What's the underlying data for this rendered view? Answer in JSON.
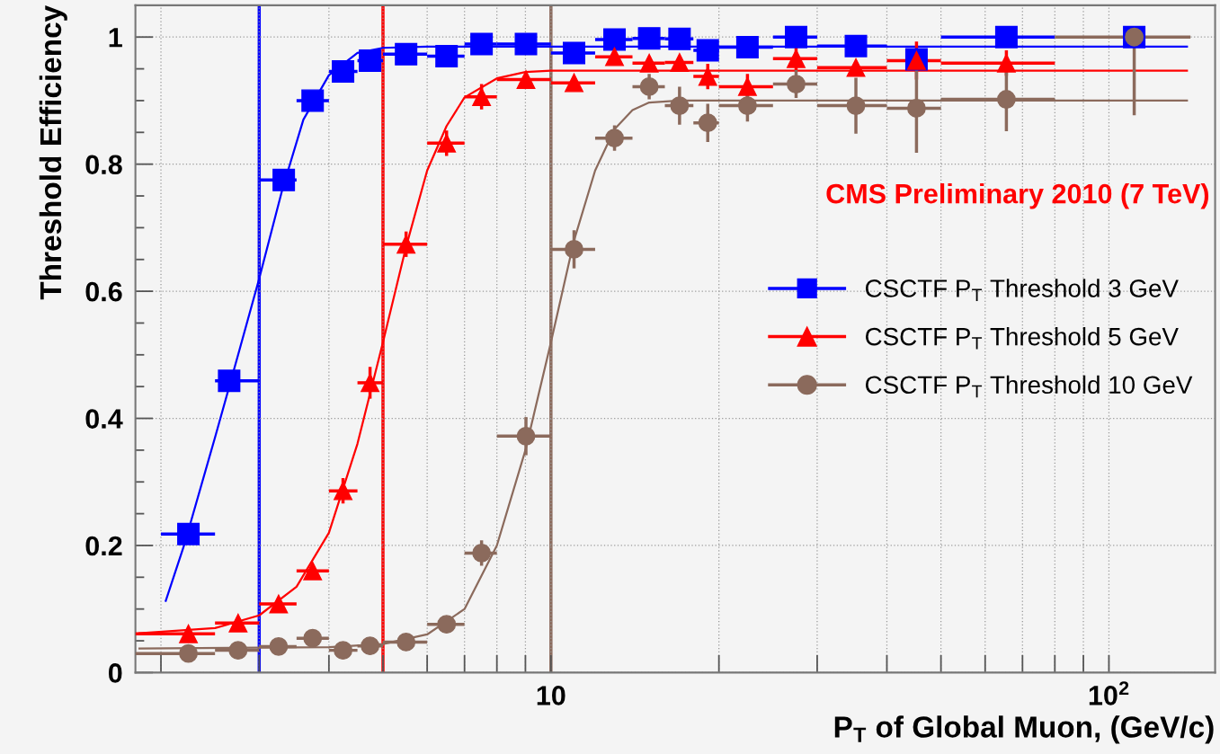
{
  "chart_data": {
    "type": "scatter",
    "xlabel": "P$_{T}$ of Global Muon, (GeV/c)",
    "ylabel": "Threshold Efficiency",
    "log": "x",
    "xlim": [
      1.8,
      155
    ],
    "ylim": [
      0,
      1.05
    ],
    "xticks": [
      {
        "value": 2,
        "label": null
      },
      {
        "value": 3,
        "label": null
      },
      {
        "value": 4,
        "label": null
      },
      {
        "value": 5,
        "label": null
      },
      {
        "value": 6,
        "label": null
      },
      {
        "value": 7,
        "label": null
      },
      {
        "value": 8,
        "label": null
      },
      {
        "value": 9,
        "label": null
      },
      {
        "value": 10,
        "label": "10"
      },
      {
        "value": 20,
        "label": null
      },
      {
        "value": 30,
        "label": null
      },
      {
        "value": 40,
        "label": null
      },
      {
        "value": 50,
        "label": null
      },
      {
        "value": 60,
        "label": null
      },
      {
        "value": 70,
        "label": null
      },
      {
        "value": 80,
        "label": null
      },
      {
        "value": 90,
        "label": null
      },
      {
        "value": 100,
        "label": "10$^{2}$"
      }
    ],
    "yticks": [
      0,
      0.2,
      0.4,
      0.6,
      0.8,
      1
    ],
    "grid": true,
    "legend": "right",
    "annotations": [
      "CMS Preliminary 2010 (7 TeV)"
    ],
    "ref_lines": [
      {
        "axis": "x",
        "value": 3,
        "color": "#0000ff"
      },
      {
        "axis": "x",
        "value": 5,
        "color": "#ff0000"
      },
      {
        "axis": "x",
        "value": 10,
        "color": "#8b6a5c"
      }
    ],
    "series": [
      {
        "type": "line",
        "color": "#0000ff",
        "marker": "none",
        "x": [
          2.04,
          2.2,
          2.5,
          2.75,
          3.0,
          3.3,
          3.6,
          4.0,
          4.5,
          5,
          6,
          138
        ],
        "values": [
          0.113,
          0.2,
          0.37,
          0.5,
          0.62,
          0.76,
          0.87,
          0.94,
          0.975,
          0.983,
          0.985,
          0.985
        ]
      },
      {
        "type": "line",
        "color": "#ff0000",
        "marker": "none",
        "x": [
          1.83,
          2.5,
          3.0,
          3.5,
          4.0,
          4.5,
          5.0,
          5.5,
          6,
          6.5,
          7,
          8,
          9,
          10,
          138
        ],
        "values": [
          0.062,
          0.07,
          0.09,
          0.135,
          0.22,
          0.36,
          0.52,
          0.67,
          0.79,
          0.86,
          0.905,
          0.935,
          0.945,
          0.947,
          0.947
        ]
      },
      {
        "type": "line",
        "color": "#8b6a5c",
        "marker": "none",
        "x": [
          1.83,
          4,
          5,
          6,
          7,
          8,
          9,
          10,
          11,
          12,
          13,
          14,
          15,
          17,
          138
        ],
        "values": [
          0.038,
          0.04,
          0.045,
          0.06,
          0.1,
          0.2,
          0.35,
          0.52,
          0.68,
          0.79,
          0.855,
          0.885,
          0.897,
          0.9,
          0.9
        ]
      },
      {
        "name": "CSCTF P$_{T}$ Threshold 3 GeV",
        "color": "#0000ff",
        "marker": "square",
        "x": [
          2.24,
          2.65,
          3.32,
          3.74,
          4.24,
          4.74,
          5.5,
          6.5,
          7.51,
          9.02,
          11.0,
          13.0,
          15.0,
          17.0,
          19.1,
          22.5,
          27.5,
          35.2,
          45.2,
          65.5,
          111
        ],
        "values": [
          0.218,
          0.459,
          0.775,
          0.9,
          0.946,
          0.963,
          0.973,
          0.97,
          0.989,
          0.989,
          0.975,
          0.996,
          0.998,
          0.997,
          0.979,
          0.984,
          1.0,
          0.986,
          0.965,
          1.0,
          1.0
        ],
        "xerrors": [
          [
            2,
            2.5
          ],
          [
            2.5,
            3
          ],
          [
            3,
            3.5
          ],
          [
            3.5,
            4
          ],
          [
            4,
            4.5
          ],
          [
            4.5,
            5
          ],
          [
            5,
            6
          ],
          [
            6,
            7
          ],
          [
            7,
            8
          ],
          [
            8,
            10
          ],
          [
            10,
            12
          ],
          [
            12,
            14
          ],
          [
            14,
            16
          ],
          [
            16,
            18
          ],
          [
            18,
            20
          ],
          [
            20,
            25
          ],
          [
            25,
            30
          ],
          [
            30,
            40
          ],
          null,
          [
            50,
            80
          ],
          null
        ]
      },
      {
        "name": "CSCTF P$_{T}$ Threshold 5 GeV",
        "color": "#ff0000",
        "marker": "triangle",
        "x": [
          2.24,
          2.75,
          3.25,
          3.74,
          4.24,
          4.74,
          5.5,
          6.5,
          7.51,
          9.02,
          11.0,
          13.0,
          15.0,
          17.0,
          19.1,
          22.5,
          27.5,
          35.2,
          45.2,
          65.5
        ],
        "values": [
          0.061,
          0.078,
          0.108,
          0.16,
          0.286,
          0.456,
          0.674,
          0.833,
          0.906,
          0.933,
          0.928,
          0.969,
          0.959,
          0.96,
          0.938,
          0.922,
          0.966,
          0.952,
          0.963,
          0.959
        ],
        "errors": [
          null,
          null,
          null,
          null,
          0.02,
          0.025,
          0.02,
          0.02,
          0.02,
          null,
          null,
          null,
          null,
          null,
          0.02,
          0.02,
          0.02,
          null,
          0.03,
          0.02
        ],
        "xerrors": [
          [
            1.8,
            2.5
          ],
          [
            2.5,
            3
          ],
          [
            3,
            3.5
          ],
          [
            3.5,
            4
          ],
          [
            4,
            4.5
          ],
          [
            4.5,
            5
          ],
          [
            5,
            6
          ],
          [
            6,
            7
          ],
          [
            7,
            8
          ],
          [
            8,
            10
          ],
          [
            10,
            12
          ],
          [
            12,
            14
          ],
          [
            14,
            16
          ],
          [
            16,
            18
          ],
          [
            18,
            20
          ],
          [
            20,
            25
          ],
          [
            25,
            30
          ],
          [
            30,
            40
          ],
          [
            40,
            50
          ],
          [
            50,
            80
          ]
        ]
      },
      {
        "name": "CSCTF P$_{T}$ Threshold 10 GeV",
        "color": "#8b6a5c",
        "marker": "circle",
        "x": [
          2.24,
          2.75,
          3.25,
          3.74,
          4.24,
          4.74,
          5.5,
          6.5,
          7.51,
          9.02,
          11.0,
          13.0,
          15.0,
          17.0,
          19.1,
          22.5,
          27.5,
          35.2,
          45.2,
          65.5,
          111
        ],
        "values": [
          0.03,
          0.035,
          0.041,
          0.054,
          0.035,
          0.042,
          0.048,
          0.076,
          0.188,
          0.372,
          0.666,
          0.841,
          0.922,
          0.892,
          0.865,
          0.892,
          0.926,
          0.892,
          0.888,
          0.902,
          1.0
        ],
        "errors": [
          null,
          null,
          null,
          null,
          null,
          null,
          null,
          0.01,
          0.02,
          0.03,
          0.03,
          0.02,
          0.02,
          0.03,
          0.03,
          0.025,
          0.022,
          0.044,
          0.07,
          0.05,
          [
            0.877,
            1.0
          ]
        ],
        "xerrors": [
          [
            1.8,
            2.5
          ],
          [
            2.5,
            3
          ],
          [
            3,
            3.5
          ],
          [
            3.5,
            4
          ],
          [
            4,
            4.5
          ],
          [
            4.5,
            5
          ],
          [
            5,
            6
          ],
          [
            6,
            7
          ],
          [
            7,
            8
          ],
          [
            8,
            10
          ],
          [
            10,
            12
          ],
          [
            12,
            14
          ],
          [
            14,
            16
          ],
          [
            16,
            18
          ],
          [
            18,
            20
          ],
          [
            20,
            25
          ],
          [
            25,
            30
          ],
          [
            30,
            40
          ],
          [
            40,
            50
          ],
          [
            50,
            80
          ],
          [
            80,
            140
          ]
        ]
      }
    ]
  }
}
